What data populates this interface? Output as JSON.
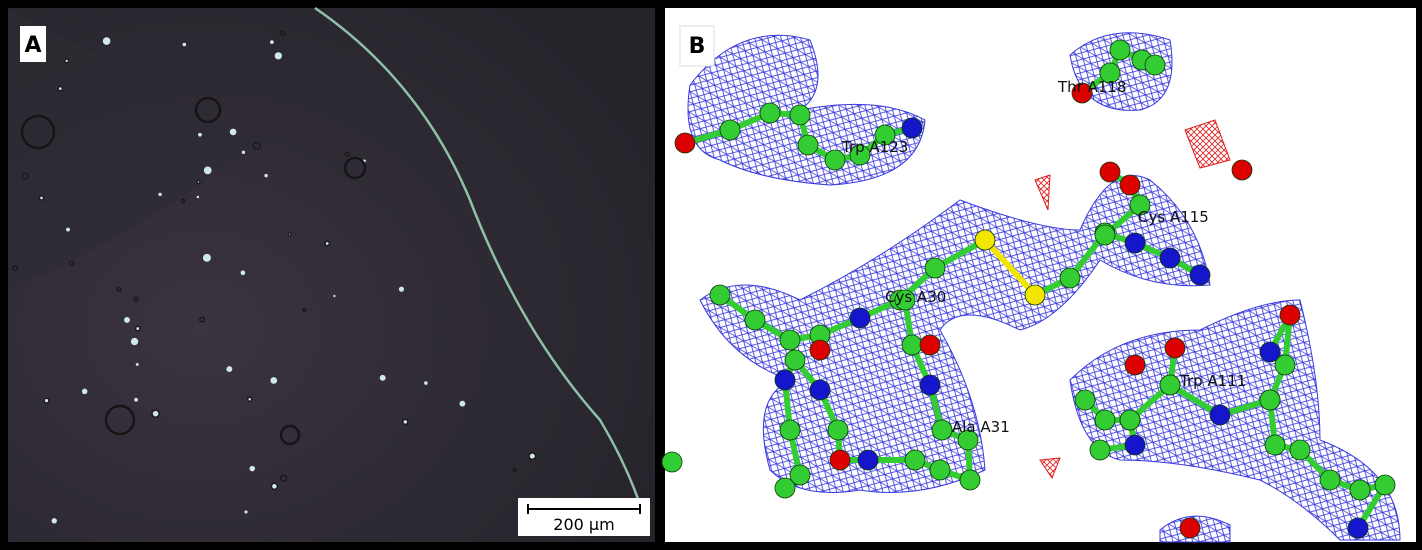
{
  "panels": [
    {
      "label": "A",
      "scale_bar": "200 µm"
    },
    {
      "label": "B",
      "residues": [
        "Thr A118",
        "Trp A123",
        "Cys A115",
        "Cys A30",
        "Trp A111",
        "Ala A31"
      ]
    }
  ]
}
